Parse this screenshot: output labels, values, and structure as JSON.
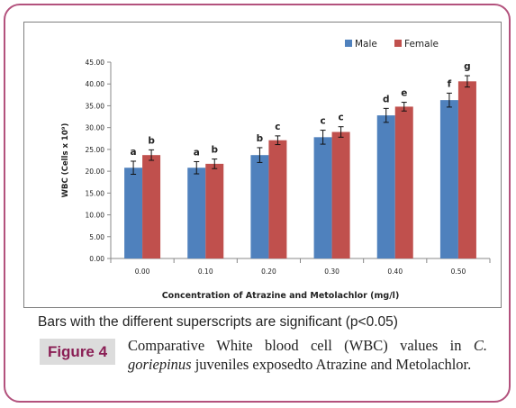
{
  "chart_data": {
    "type": "bar",
    "categories": [
      "0.00",
      "0.10",
      "0.20",
      "0.30",
      "0.40",
      "0.50"
    ],
    "series": [
      {
        "name": "Male",
        "color": "#4f81bd",
        "values": [
          20.8,
          20.8,
          23.7,
          27.8,
          32.8,
          36.3
        ],
        "errors": [
          1.5,
          1.4,
          1.7,
          1.6,
          1.6,
          1.6
        ],
        "labels": [
          "a",
          "a",
          "b",
          "c",
          "d",
          "f"
        ]
      },
      {
        "name": "Female",
        "color": "#c0504d",
        "values": [
          23.7,
          21.7,
          27.1,
          29.0,
          34.8,
          40.6
        ],
        "errors": [
          1.2,
          1.1,
          1.0,
          1.2,
          1.0,
          1.3
        ],
        "labels": [
          "b",
          "b",
          "c",
          "c",
          "e",
          "g"
        ]
      }
    ],
    "xlabel": "Concentration of Atrazine and Metolachlor (mg/l)",
    "ylabel": "WBC (Cells x 10⁹)",
    "ylim": [
      0,
      45
    ],
    "yticks": [
      "0.00",
      "5.00",
      "10.00",
      "15.00",
      "20.00",
      "25.00",
      "30.00",
      "35.00",
      "40.00",
      "45.00"
    ],
    "legend_position": "top-right"
  },
  "note": "Bars with the different superscripts are significant (p<0.05)",
  "figure_label": "Figure 4",
  "caption": {
    "before": "Comparative White blood cell (WBC) values in ",
    "species": "C. goriepinus",
    "after": " juveniles exposedto Atrazine and Metolachlor."
  }
}
